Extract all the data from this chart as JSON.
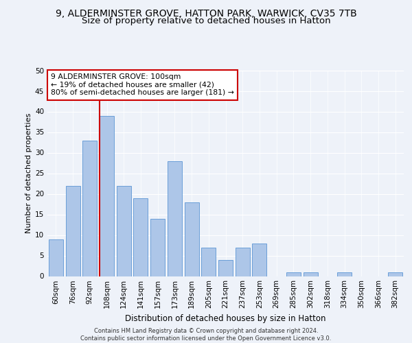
{
  "title1": "9, ALDERMINSTER GROVE, HATTON PARK, WARWICK, CV35 7TB",
  "title2": "Size of property relative to detached houses in Hatton",
  "xlabel": "Distribution of detached houses by size in Hatton",
  "ylabel": "Number of detached properties",
  "categories": [
    "60sqm",
    "76sqm",
    "92sqm",
    "108sqm",
    "124sqm",
    "141sqm",
    "157sqm",
    "173sqm",
    "189sqm",
    "205sqm",
    "221sqm",
    "237sqm",
    "253sqm",
    "269sqm",
    "285sqm",
    "302sqm",
    "318sqm",
    "334sqm",
    "350sqm",
    "366sqm",
    "382sqm"
  ],
  "values": [
    9,
    22,
    33,
    39,
    22,
    19,
    14,
    28,
    18,
    7,
    4,
    7,
    8,
    0,
    1,
    1,
    0,
    1,
    0,
    0,
    1
  ],
  "bar_color": "#adc6e8",
  "bar_edge_color": "#6a9fd8",
  "vline_color": "#cc0000",
  "vline_x_index": 3,
  "annotation_line1": "9 ALDERMINSTER GROVE: 100sqm",
  "annotation_line2": "← 19% of detached houses are smaller (42)",
  "annotation_line3": "80% of semi-detached houses are larger (181) →",
  "annotation_box_facecolor": "white",
  "annotation_box_edgecolor": "#cc0000",
  "ylim": [
    0,
    50
  ],
  "yticks": [
    0,
    5,
    10,
    15,
    20,
    25,
    30,
    35,
    40,
    45,
    50
  ],
  "background_color": "#eef2f9",
  "grid_color": "white",
  "footer": "Contains HM Land Registry data © Crown copyright and database right 2024.\nContains public sector information licensed under the Open Government Licence v3.0.",
  "title1_fontsize": 10,
  "title2_fontsize": 9.5,
  "xlabel_fontsize": 8.5,
  "ylabel_fontsize": 8,
  "tick_fontsize": 7.5,
  "annotation_fontsize": 7.8,
  "footer_fontsize": 6
}
